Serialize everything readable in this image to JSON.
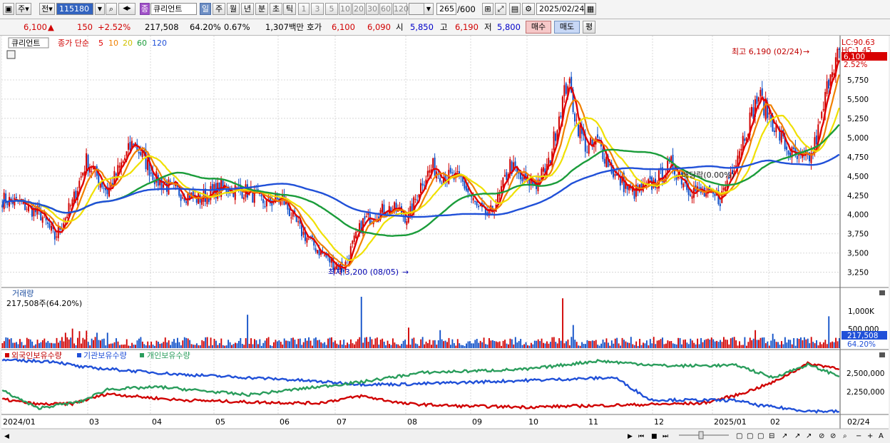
{
  "toolbar": {
    "period_type": "주",
    "market": "전",
    "code": "115180",
    "name_prefix": "종",
    "stock_name": "큐리언트",
    "tabs": [
      "일",
      "주",
      "월",
      "년",
      "분",
      "초",
      "틱"
    ],
    "active_tab": "일",
    "intervals": [
      "1",
      "3",
      "5",
      "10",
      "20",
      "30",
      "60",
      "120"
    ],
    "view_count": "265",
    "view_total": "/600",
    "date": "2025/02/24"
  },
  "quote": {
    "price": "6,100",
    "change_arrow": "▲",
    "change": "150",
    "change_pct": "+2.52%",
    "volume": "217,508",
    "volume_ratio": "64.20%",
    "turnover": "0.67%",
    "amount": "1,307백만",
    "ask_label": "호가",
    "ask": "6,100",
    "bid": "6,090",
    "open_label": "시",
    "open": "5,850",
    "high_label": "고",
    "high": "6,190",
    "low_label": "저",
    "low": "5,800",
    "buy_button": "매수",
    "sell_button": "매도",
    "eval_button": "평"
  },
  "colors": {
    "up": "#d10000",
    "down": "#1050c8",
    "ma5": "#e00000",
    "ma10": "#f08000",
    "ma20": "#f0e000",
    "ma60": "#1a9c3a",
    "ma120": "#2050d8",
    "foreign": "#d00000",
    "institution": "#2050d8",
    "individual": "#2a9d5c"
  },
  "chart_data": [
    {
      "type": "candlestick",
      "title": "큐리언트",
      "legend": {
        "base": "종가 단순",
        "periods": [
          "5",
          "10",
          "20",
          "60",
          "120"
        ]
      },
      "price_axis": [
        "5,750",
        "5,500",
        "5,250",
        "5,000",
        "4,750",
        "4,500",
        "4,250",
        "4,000",
        "3,750",
        "3,500",
        "3,250"
      ],
      "ylim": [
        3080,
        6250
      ],
      "lc_label": "LC:90.63",
      "hc_label": "HC:1.45",
      "current_price_tag": "6,100",
      "current_change_tag": "2.52%",
      "high_annotation": "최고 6,190 (02/24)",
      "low_annotation": "최저 3,200 (08/05)",
      "dividend_annotation": "배당락(0.00%)",
      "x_labels": [
        "2024/01",
        "03",
        "04",
        "05",
        "06",
        "07",
        "08",
        "09",
        "10",
        "11",
        "12",
        "2025/01",
        "02"
      ],
      "x_end_label": "02/24",
      "anchors": [
        [
          0,
          4200
        ],
        [
          10,
          4150
        ],
        [
          22,
          4000
        ],
        [
          30,
          3700
        ],
        [
          40,
          4150
        ],
        [
          48,
          4700
        ],
        [
          60,
          4300
        ],
        [
          75,
          4950
        ],
        [
          88,
          4450
        ],
        [
          100,
          4300
        ],
        [
          112,
          4200
        ],
        [
          125,
          4350
        ],
        [
          140,
          4300
        ],
        [
          150,
          4150
        ],
        [
          160,
          4200
        ],
        [
          170,
          3800
        ],
        [
          180,
          3550
        ],
        [
          188,
          3380
        ],
        [
          195,
          3300
        ],
        [
          200,
          3600
        ],
        [
          206,
          3900
        ],
        [
          212,
          4000
        ],
        [
          220,
          4080
        ],
        [
          226,
          4050
        ],
        [
          232,
          3950
        ],
        [
          240,
          4450
        ],
        [
          246,
          4620
        ],
        [
          252,
          4500
        ],
        [
          262,
          4450
        ],
        [
          272,
          4050
        ],
        [
          278,
          3980
        ],
        [
          284,
          4250
        ],
        [
          290,
          4650
        ],
        [
          296,
          4450
        ],
        [
          305,
          4400
        ],
        [
          312,
          4650
        ],
        [
          318,
          5300
        ],
        [
          323,
          5750
        ],
        [
          328,
          5200
        ],
        [
          334,
          4850
        ],
        [
          340,
          4950
        ],
        [
          350,
          4500
        ],
        [
          360,
          4280
        ],
        [
          372,
          4400
        ],
        [
          382,
          4650
        ],
        [
          392,
          4350
        ],
        [
          402,
          4250
        ],
        [
          410,
          4200
        ],
        [
          416,
          4550
        ],
        [
          424,
          5050
        ],
        [
          432,
          5550
        ],
        [
          440,
          5200
        ],
        [
          448,
          4850
        ],
        [
          455,
          4700
        ],
        [
          462,
          4750
        ],
        [
          468,
          5250
        ],
        [
          473,
          5900
        ],
        [
          478,
          6100
        ]
      ],
      "volume": {
        "label": "거래량",
        "value": "217,508주(64.20%)",
        "axis": [
          "1,000K",
          "500,000"
        ],
        "tag_value": "217,508",
        "tag_pct": "64.20%",
        "spikes": [
          [
            11,
            0.12
          ],
          [
            36,
            0.3
          ],
          [
            40,
            0.38
          ],
          [
            44,
            0.33
          ],
          [
            48,
            0.34
          ],
          [
            54,
            0.3
          ],
          [
            60,
            0.3
          ],
          [
            140,
            0.65
          ],
          [
            205,
            1.0
          ],
          [
            232,
            0.4
          ],
          [
            250,
            0.35
          ],
          [
            320,
            0.97
          ],
          [
            326,
            0.45
          ],
          [
            430,
            0.35
          ],
          [
            440,
            0.28
          ],
          [
            472,
            0.62
          ]
        ]
      },
      "holdings": {
        "legend": [
          "외국인보유수량",
          "기관보유수량",
          "개인보유수량"
        ],
        "axis": [
          "2,500,000",
          "2,250,000"
        ],
        "foreign": [
          [
            0,
            0.26
          ],
          [
            20,
            0.17
          ],
          [
            40,
            0.18
          ],
          [
            60,
            0.36
          ],
          [
            80,
            0.3
          ],
          [
            100,
            0.25
          ],
          [
            140,
            0.21
          ],
          [
            180,
            0.19
          ],
          [
            205,
            0.32
          ],
          [
            230,
            0.18
          ],
          [
            260,
            0.14
          ],
          [
            300,
            0.12
          ],
          [
            330,
            0.14
          ],
          [
            360,
            0.16
          ],
          [
            400,
            0.19
          ],
          [
            420,
            0.34
          ],
          [
            440,
            0.56
          ],
          [
            460,
            0.9
          ],
          [
            478,
            0.82
          ]
        ],
        "institution": [
          [
            0,
            0.96
          ],
          [
            30,
            0.94
          ],
          [
            45,
            0.84
          ],
          [
            100,
            0.71
          ],
          [
            160,
            0.62
          ],
          [
            205,
            0.53
          ],
          [
            230,
            0.53
          ],
          [
            300,
            0.6
          ],
          [
            350,
            0.65
          ],
          [
            370,
            0.25
          ],
          [
            420,
            0.24
          ],
          [
            430,
            0.16
          ],
          [
            460,
            0.05
          ],
          [
            478,
            0.04
          ]
        ],
        "individual": [
          [
            0,
            0.42
          ],
          [
            20,
            0.1
          ],
          [
            45,
            0.22
          ],
          [
            60,
            0.44
          ],
          [
            90,
            0.48
          ],
          [
            140,
            0.34
          ],
          [
            205,
            0.57
          ],
          [
            240,
            0.74
          ],
          [
            300,
            0.8
          ],
          [
            340,
            0.95
          ],
          [
            380,
            0.86
          ],
          [
            420,
            0.87
          ],
          [
            440,
            0.65
          ],
          [
            460,
            0.88
          ],
          [
            478,
            0.68
          ]
        ]
      },
      "candle_count": 479
    }
  ]
}
